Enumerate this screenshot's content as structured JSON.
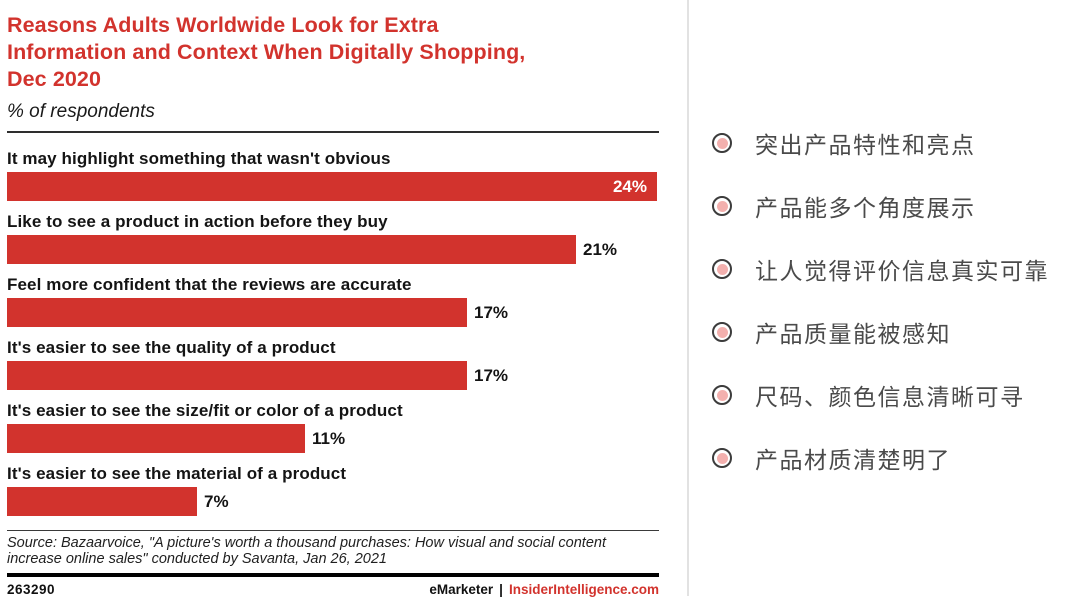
{
  "colors": {
    "accent_red": "#d2332d",
    "bar_red": "#d2332d",
    "bullet_pink": "#f3b0ae",
    "bullet_ring": "#3c3c3c",
    "divider_gray": "#e2e2e2"
  },
  "chart": {
    "title": "Reasons Adults Worldwide Look for Extra\nInformation and Context When Digitally Shopping,\nDec 2020",
    "subtitle": "% of respondents",
    "source": "Source: Bazaarvoice, \"A picture's worth a thousand purchases: How visual and social content\nincrease online sales\" conducted by Savanta, Jan 26, 2021"
  },
  "chart_data": {
    "type": "bar",
    "orientation": "horizontal",
    "title": "Reasons Adults Worldwide Look for Extra Information and Context When Digitally Shopping, Dec 2020",
    "unit_label": "% of respondents",
    "categories": [
      "It may highlight something that wasn't obvious",
      "Like to see a product in action before they buy",
      "Feel more confident that the reviews are accurate",
      "It's easier to see the quality of a product",
      "It's easier to see the size/fit or color of a product",
      "It's easier to see the material of a product"
    ],
    "values": [
      24,
      21,
      17,
      17,
      11,
      7
    ],
    "value_labels": [
      "24%",
      "21%",
      "17%",
      "17%",
      "11%",
      "7%"
    ],
    "value_label_position": [
      "inside",
      "outside",
      "outside",
      "outside",
      "outside",
      "outside"
    ],
    "xlim": [
      0,
      24
    ],
    "grid": "off",
    "legend": "none",
    "bar_color": "#d2332d"
  },
  "footer": {
    "chart_id": "263290",
    "brand": "eMarketer",
    "separator": "|",
    "site": "InsiderIntelligence.com"
  },
  "sidebar": {
    "items": [
      {
        "label": "突出产品特性和亮点"
      },
      {
        "label": "产品能多个角度展示"
      },
      {
        "label": "让人觉得评价信息真实可靠"
      },
      {
        "label": "产品质量能被感知"
      },
      {
        "label": "尺码、颜色信息清晰可寻"
      },
      {
        "label": "产品材质清楚明了"
      }
    ]
  }
}
